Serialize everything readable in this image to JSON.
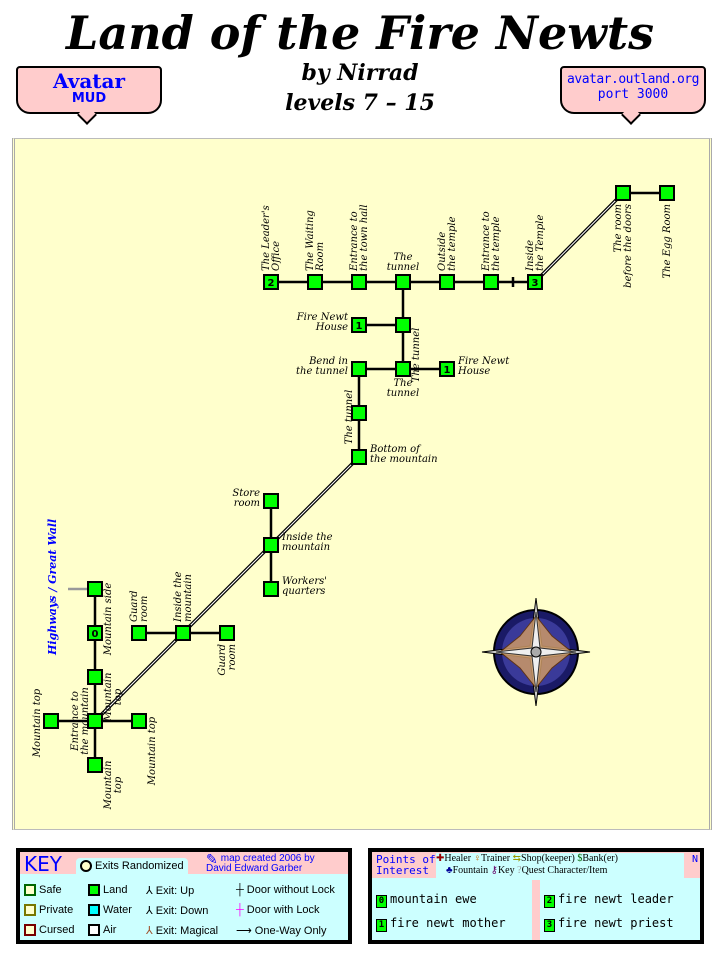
{
  "header": {
    "title": "Land of the Fire Newts",
    "author": "by Nirrad",
    "levels": "levels 7 – 15",
    "badge_left": {
      "line1": "Avatar",
      "line2": "MUD"
    },
    "badge_right": {
      "line1": "avatar.outland.org",
      "line2": "port 3000"
    }
  },
  "map": {
    "side_label": "Highways / Great Wall",
    "colors": {
      "land": "#00ff00",
      "parchment": "#ffffcc",
      "border": "#000000"
    },
    "rooms": [
      {
        "label": [
          "The Leader's",
          "Office"
        ],
        "poi": "2"
      },
      {
        "label": [
          "The Waiting",
          "Room"
        ]
      },
      {
        "label": [
          "Entrance to",
          "the town hall"
        ]
      },
      {
        "label": [
          "The",
          "tunnel"
        ]
      },
      {
        "label": [
          "Outside",
          "the temple"
        ]
      },
      {
        "label": [
          "Entrance to",
          "the temple"
        ]
      },
      {
        "label": [
          "Inside",
          "the Temple"
        ],
        "poi": "3"
      },
      {
        "label": [
          "The room",
          "before the doors"
        ]
      },
      {
        "label": [
          "The Egg Room"
        ]
      },
      {
        "label": [
          "Fire Newt",
          "House"
        ],
        "poi": "1"
      },
      {
        "label": [
          "The tunnel"
        ]
      },
      {
        "label": [
          "Bend in",
          "the tunnel"
        ]
      },
      {
        "label": [
          "The",
          "tunnel"
        ]
      },
      {
        "label": [
          "Fire Newt",
          "House"
        ],
        "poi": "1"
      },
      {
        "label": [
          "The tunnel"
        ]
      },
      {
        "label": [
          "Bottom of",
          "the mountain"
        ]
      },
      {
        "label": [
          "Store",
          "room"
        ]
      },
      {
        "label": [
          "Inside the",
          "mountain"
        ]
      },
      {
        "label": [
          "Workers'",
          "quarters"
        ]
      },
      {
        "label": [
          "Guard",
          "room"
        ]
      },
      {
        "label": [
          "Inside the",
          "mountain"
        ]
      },
      {
        "label": [
          "Guard",
          "room"
        ]
      },
      {
        "label": [
          "Mountain side"
        ]
      },
      {
        "label": [
          "Mountain side"
        ],
        "poi": "0",
        "hide_label": true
      },
      {
        "label": [
          "Mountain",
          "top"
        ]
      },
      {
        "label": [
          "Entrance to",
          "the mountain"
        ]
      },
      {
        "label": [
          "Mountain top"
        ]
      },
      {
        "label": [
          "Mountain top"
        ]
      },
      {
        "label": [
          "Mountain",
          "top"
        ]
      }
    ]
  },
  "key": {
    "title": "KEY",
    "exits_randomized": "Exits Randomized",
    "credit1": "map created 2006 by",
    "credit2": "David Edward Garber",
    "items": [
      "Safe",
      "Private",
      "Cursed",
      "Land",
      "Water",
      "Air",
      "Exit: Up",
      "Exit: Down",
      "Exit: Magical",
      "Door without Lock",
      "Door with Lock",
      "One-Way Only"
    ],
    "colors": {
      "safe": "#006600",
      "private": "#777700",
      "cursed": "#770000",
      "land": "#00ff00",
      "water": "#00ffff",
      "air": "#ffffff",
      "lock": "#ff00ff"
    }
  },
  "poi": {
    "title1": "Points of",
    "title2": "Interest",
    "legend": [
      "Healer",
      "Trainer",
      "Shop(keeper)",
      "Bank(er)",
      "Fountain",
      "Key",
      "Quest Character/Item"
    ],
    "north": "N",
    "entries": [
      {
        "n": "0",
        "name": "mountain ewe"
      },
      {
        "n": "1",
        "name": "fire newt mother"
      },
      {
        "n": "2",
        "name": "fire newt leader"
      },
      {
        "n": "3",
        "name": "fire newt priest"
      }
    ]
  }
}
